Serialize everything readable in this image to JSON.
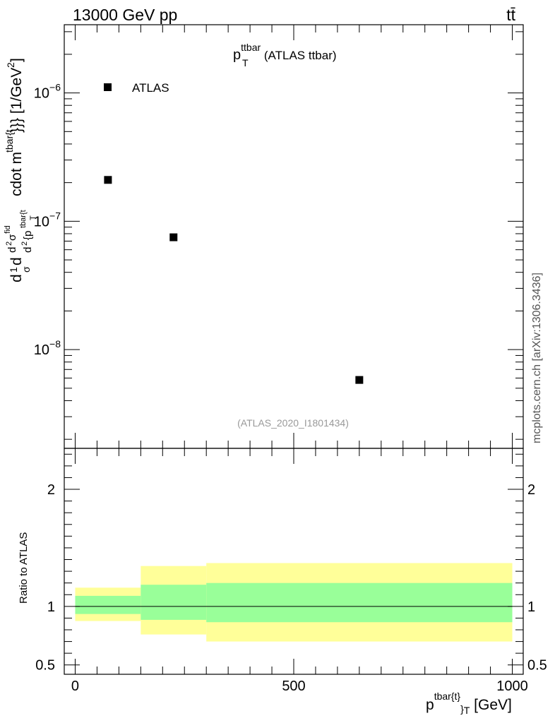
{
  "header": {
    "left": "13000 GeV pp",
    "right": "tt̄"
  },
  "side_label": "mcplots.cern.ch [arXiv:1306.3436]",
  "chart_data": [
    {
      "type": "scatter",
      "panel": "main",
      "title_main": "p",
      "title_sub": "T",
      "title_sup": "ttbar",
      "title_rest": " (ATLAS ttbar)",
      "watermark": "(ATLAS_2020_I1801434)",
      "ylabel_text": "d²σ/dp_T d m — [1/GeV²]",
      "ylabel_unit": "[1/GeV",
      "yscale": "log",
      "ylim": [
        1.7e-09,
        3.4e-06
      ],
      "xlim": [
        -25,
        1025
      ],
      "y_ticks": [
        {
          "value": 1e-08,
          "base": "10",
          "exp": "−8"
        },
        {
          "value": 1e-07,
          "base": "10",
          "exp": "−7"
        },
        {
          "value": 1e-06,
          "base": "10",
          "exp": "−6"
        }
      ],
      "series": [
        {
          "name": "ATLAS",
          "color": "#000000",
          "x": [
            75,
            225,
            650
          ],
          "y": [
            2.1e-07,
            7.5e-08,
            5.8e-09
          ]
        }
      ]
    },
    {
      "type": "area",
      "panel": "ratio",
      "ylabel": "Ratio to ATLAS",
      "xlabel_main": "p",
      "xlabel_sup": "tbar{t}",
      "xlabel_sub": "}",
      "xlabel_sub2": "T",
      "xlabel_unit": " [GeV]",
      "xlim": [
        -25,
        1025
      ],
      "ylim": [
        0.42,
        2.35
      ],
      "x_ticks": [
        {
          "value": 0,
          "label": "0"
        },
        {
          "value": 500,
          "label": "500"
        },
        {
          "value": 1000,
          "label": "1000"
        }
      ],
      "y_ticks": [
        {
          "value": 0.5,
          "label": "0.5"
        },
        {
          "value": 1,
          "label": "1"
        },
        {
          "value": 2,
          "label": "2"
        }
      ],
      "bands": [
        {
          "x0": 0,
          "x1": 150,
          "outer": [
            0.875,
            1.16
          ],
          "inner": [
            0.935,
            1.09
          ]
        },
        {
          "x0": 150,
          "x1": 300,
          "outer": [
            0.76,
            1.345
          ],
          "inner": [
            0.885,
            1.185
          ]
        },
        {
          "x0": 300,
          "x1": 1000,
          "outer": [
            0.7,
            1.37
          ],
          "inner": [
            0.865,
            1.2
          ]
        }
      ],
      "colors": {
        "outer": "#ffff99",
        "inner": "#99ff99",
        "line": "#000000"
      }
    }
  ]
}
